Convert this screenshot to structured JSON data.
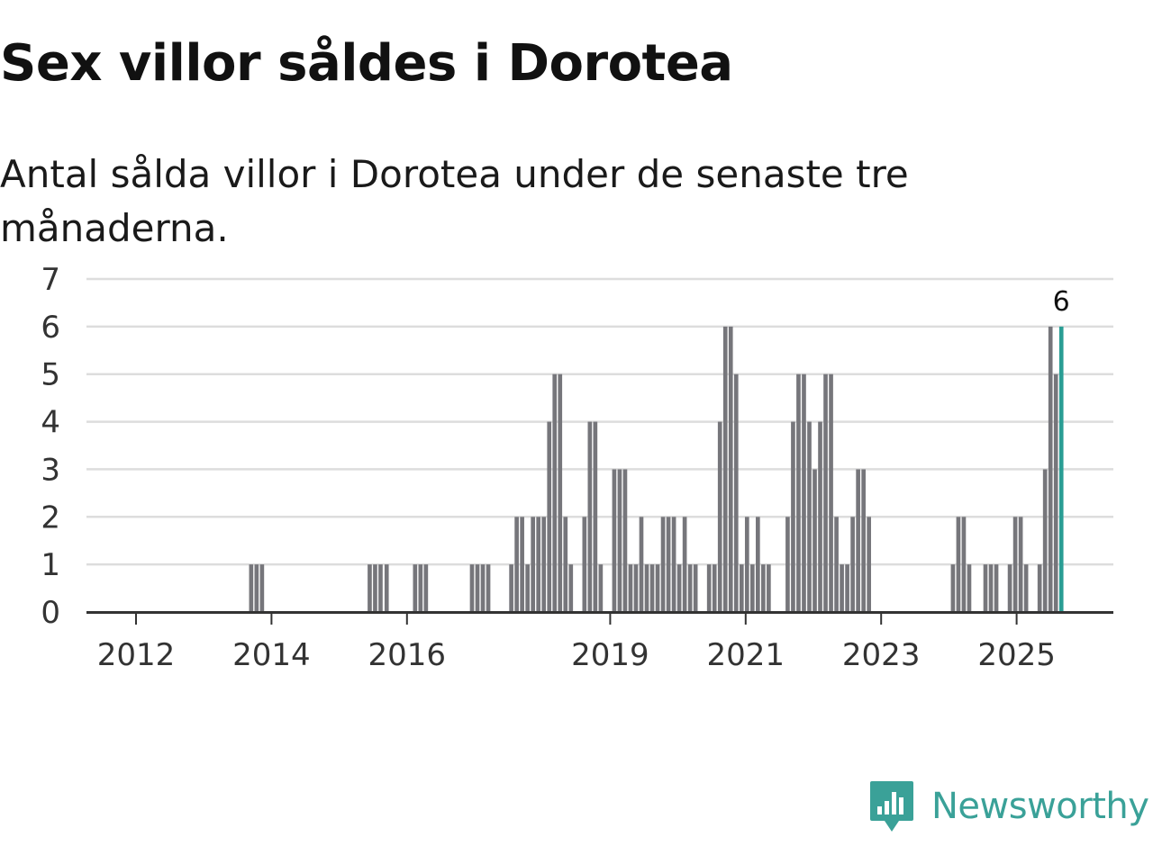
{
  "header": {
    "title": "Sex villor såldes i Dorotea",
    "subtitle": "Antal sålda villor i Dorotea under de senaste tre månaderna."
  },
  "brand": {
    "name": "Newsworthy",
    "color": "#3aa198"
  },
  "colors": {
    "bar": "#76767b",
    "highlight": "#2a9d94",
    "grid": "#dddddd",
    "axis": "#333333"
  },
  "chart_data": {
    "type": "bar",
    "title": "Sex villor såldes i Dorotea",
    "subtitle": "Antal sålda villor i Dorotea under de senaste tre månaderna.",
    "xlabel": "",
    "ylabel": "",
    "ylim": [
      0,
      7
    ],
    "yticks": [
      0,
      1,
      2,
      3,
      4,
      5,
      6,
      7
    ],
    "grid": true,
    "x_ticks": [
      {
        "label": "2012",
        "t": 2012.0
      },
      {
        "label": "2014",
        "t": 2014.0
      },
      {
        "label": "2016",
        "t": 2016.0
      },
      {
        "label": "2019",
        "t": 2019.0
      },
      {
        "label": "2021",
        "t": 2021.0
      },
      {
        "label": "2023",
        "t": 2023.0
      },
      {
        "label": "2025",
        "t": 2025.0
      }
    ],
    "bar_width_years": 0.062,
    "highlight_label": "6",
    "bars": [
      {
        "t": 2013.7,
        "value": 1
      },
      {
        "t": 2013.78,
        "value": 1
      },
      {
        "t": 2013.86,
        "value": 1
      },
      {
        "t": 2015.45,
        "value": 1
      },
      {
        "t": 2015.53,
        "value": 1
      },
      {
        "t": 2015.61,
        "value": 1
      },
      {
        "t": 2015.7,
        "value": 1
      },
      {
        "t": 2016.12,
        "value": 1
      },
      {
        "t": 2016.2,
        "value": 1
      },
      {
        "t": 2016.28,
        "value": 1
      },
      {
        "t": 2016.96,
        "value": 1
      },
      {
        "t": 2017.04,
        "value": 1
      },
      {
        "t": 2017.12,
        "value": 1
      },
      {
        "t": 2017.2,
        "value": 1
      },
      {
        "t": 2017.54,
        "value": 1
      },
      {
        "t": 2017.62,
        "value": 2
      },
      {
        "t": 2017.7,
        "value": 2
      },
      {
        "t": 2017.78,
        "value": 1
      },
      {
        "t": 2017.86,
        "value": 2
      },
      {
        "t": 2017.94,
        "value": 2
      },
      {
        "t": 2018.02,
        "value": 2
      },
      {
        "t": 2018.1,
        "value": 4
      },
      {
        "t": 2018.18,
        "value": 5
      },
      {
        "t": 2018.26,
        "value": 5
      },
      {
        "t": 2018.34,
        "value": 2
      },
      {
        "t": 2018.42,
        "value": 1
      },
      {
        "t": 2018.62,
        "value": 2
      },
      {
        "t": 2018.7,
        "value": 4
      },
      {
        "t": 2018.78,
        "value": 4
      },
      {
        "t": 2018.86,
        "value": 1
      },
      {
        "t": 2019.06,
        "value": 3
      },
      {
        "t": 2019.14,
        "value": 3
      },
      {
        "t": 2019.22,
        "value": 3
      },
      {
        "t": 2019.3,
        "value": 1
      },
      {
        "t": 2019.38,
        "value": 1
      },
      {
        "t": 2019.46,
        "value": 2
      },
      {
        "t": 2019.54,
        "value": 1
      },
      {
        "t": 2019.62,
        "value": 1
      },
      {
        "t": 2019.7,
        "value": 1
      },
      {
        "t": 2019.78,
        "value": 2
      },
      {
        "t": 2019.86,
        "value": 2
      },
      {
        "t": 2019.94,
        "value": 2
      },
      {
        "t": 2020.02,
        "value": 1
      },
      {
        "t": 2020.1,
        "value": 2
      },
      {
        "t": 2020.18,
        "value": 1
      },
      {
        "t": 2020.26,
        "value": 1
      },
      {
        "t": 2020.46,
        "value": 1
      },
      {
        "t": 2020.54,
        "value": 1
      },
      {
        "t": 2020.62,
        "value": 4
      },
      {
        "t": 2020.7,
        "value": 6
      },
      {
        "t": 2020.78,
        "value": 6
      },
      {
        "t": 2020.86,
        "value": 5
      },
      {
        "t": 2020.94,
        "value": 1
      },
      {
        "t": 2021.02,
        "value": 2
      },
      {
        "t": 2021.1,
        "value": 1
      },
      {
        "t": 2021.18,
        "value": 2
      },
      {
        "t": 2021.26,
        "value": 1
      },
      {
        "t": 2021.34,
        "value": 1
      },
      {
        "t": 2021.62,
        "value": 2
      },
      {
        "t": 2021.7,
        "value": 4
      },
      {
        "t": 2021.78,
        "value": 5
      },
      {
        "t": 2021.86,
        "value": 5
      },
      {
        "t": 2021.94,
        "value": 4
      },
      {
        "t": 2022.02,
        "value": 3
      },
      {
        "t": 2022.1,
        "value": 4
      },
      {
        "t": 2022.18,
        "value": 5
      },
      {
        "t": 2022.26,
        "value": 5
      },
      {
        "t": 2022.34,
        "value": 2
      },
      {
        "t": 2022.42,
        "value": 1
      },
      {
        "t": 2022.5,
        "value": 1
      },
      {
        "t": 2022.58,
        "value": 2
      },
      {
        "t": 2022.66,
        "value": 3
      },
      {
        "t": 2022.74,
        "value": 3
      },
      {
        "t": 2022.82,
        "value": 2
      },
      {
        "t": 2024.06,
        "value": 1
      },
      {
        "t": 2024.14,
        "value": 2
      },
      {
        "t": 2024.22,
        "value": 2
      },
      {
        "t": 2024.3,
        "value": 1
      },
      {
        "t": 2024.54,
        "value": 1
      },
      {
        "t": 2024.62,
        "value": 1
      },
      {
        "t": 2024.7,
        "value": 1
      },
      {
        "t": 2024.9,
        "value": 1
      },
      {
        "t": 2024.98,
        "value": 2
      },
      {
        "t": 2025.06,
        "value": 2
      },
      {
        "t": 2025.14,
        "value": 1
      },
      {
        "t": 2025.34,
        "value": 1
      },
      {
        "t": 2025.42,
        "value": 3
      },
      {
        "t": 2025.5,
        "value": 6
      },
      {
        "t": 2025.58,
        "value": 5
      },
      {
        "t": 2025.66,
        "value": 6,
        "highlight": true
      }
    ]
  }
}
